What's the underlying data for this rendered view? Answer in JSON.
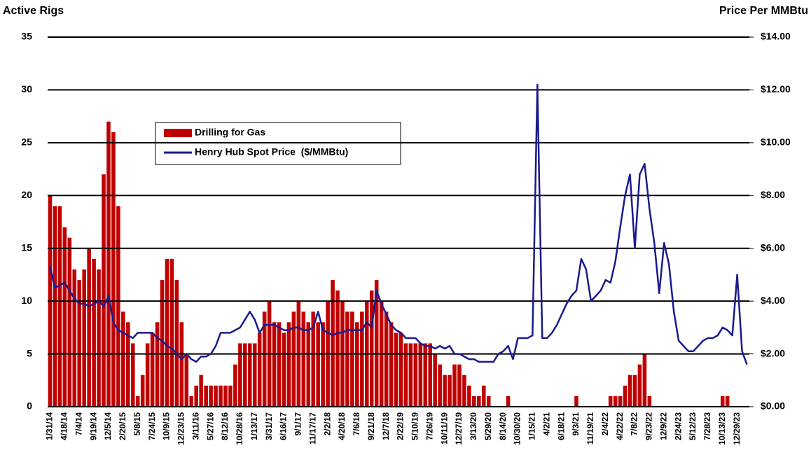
{
  "chart_data": {
    "type": "bar-line",
    "y_label": "Active Rigs",
    "y2_label": "Price Per MMBtu",
    "categories": [
      "1/31/14",
      null,
      null,
      "4/18/14",
      null,
      null,
      "7/4/14",
      null,
      null,
      "9/19/14",
      null,
      null,
      "12/5/14",
      null,
      null,
      "2/20/15",
      null,
      null,
      "5/8/15",
      null,
      null,
      "7/24/15",
      null,
      null,
      "10/9/15",
      null,
      null,
      "12/23/15",
      null,
      null,
      "3/11/16",
      null,
      null,
      "5/27/16",
      null,
      null,
      "8/12/16",
      null,
      null,
      "10/28/16",
      null,
      null,
      "1/13/17",
      null,
      null,
      "3/31/17",
      null,
      null,
      "6/16/17",
      null,
      null,
      "9/1/17",
      null,
      null,
      "11/17/17",
      null,
      null,
      "2/2/18",
      null,
      null,
      "4/20/18",
      null,
      null,
      "7/6/18",
      null,
      null,
      "9/21/18",
      null,
      null,
      "12/7/18",
      null,
      null,
      "2/22/19",
      null,
      null,
      "5/10/19",
      null,
      null,
      "7/26/19",
      null,
      null,
      "10/11/19",
      null,
      null,
      "12/27/19",
      null,
      null,
      "3/13/20",
      null,
      null,
      "5/29/20",
      null,
      null,
      "8/14/20",
      null,
      null,
      "10/30/20",
      null,
      null,
      "1/15/21",
      null,
      null,
      "4/2/21",
      null,
      null,
      "6/18/21",
      null,
      null,
      "9/3/21",
      null,
      null,
      "11/19/21",
      null,
      null,
      "2/4/22",
      null,
      null,
      "4/22/22",
      null,
      null,
      "7/8/22",
      null,
      null,
      "9/23/22",
      null,
      null,
      "12/9/22",
      null,
      null,
      "2/24/23",
      null,
      null,
      "5/12/23",
      null,
      null,
      "7/28/23",
      null,
      null,
      "10/13/23",
      null,
      null,
      "12/29/23",
      null,
      null
    ],
    "series": [
      {
        "name": "Drilling for Gas",
        "color": "#c00000",
        "kind": "bar",
        "values": [
          20,
          19,
          19,
          17,
          16,
          13,
          12,
          13,
          15,
          14,
          13,
          22,
          27,
          26,
          19,
          9,
          8,
          6,
          1,
          3,
          6,
          7,
          8,
          12,
          14,
          14,
          12,
          8,
          5,
          1,
          2,
          3,
          2,
          2,
          2,
          2,
          2,
          2,
          4,
          6,
          6,
          6,
          6,
          7,
          9,
          10,
          8,
          8,
          7,
          8,
          9,
          10,
          9,
          8,
          9,
          8,
          8,
          10,
          12,
          11,
          10,
          9,
          9,
          8,
          9,
          10,
          11,
          12,
          10,
          9,
          8,
          7,
          7,
          6,
          6,
          6,
          6,
          6,
          6,
          5,
          4,
          3,
          3,
          4,
          4,
          3,
          2,
          1,
          1,
          2,
          1,
          0,
          0,
          0,
          1,
          0,
          0,
          0,
          0,
          0,
          0,
          0,
          0,
          0,
          0,
          0,
          0,
          0,
          1,
          0,
          0,
          0,
          0,
          0,
          0,
          1,
          1,
          1,
          2,
          3,
          3,
          4,
          5,
          1,
          0,
          0,
          0,
          0,
          0,
          0,
          0,
          0,
          0,
          0,
          0,
          0,
          0,
          0,
          1,
          1,
          0,
          0,
          0,
          0
        ]
      },
      {
        "name": "Henry Hub Spot Price  ($/MMBtu)",
        "color": "#1a1a8c",
        "kind": "line",
        "axis": "y2",
        "values": [
          5.3,
          4.5,
          4.6,
          4.7,
          4.4,
          4.1,
          3.9,
          3.9,
          3.8,
          3.9,
          4.0,
          3.8,
          4.2,
          3.2,
          2.9,
          2.8,
          2.7,
          2.6,
          2.8,
          2.8,
          2.8,
          2.8,
          2.6,
          2.5,
          2.3,
          2.2,
          2.0,
          1.8,
          2.0,
          1.8,
          1.7,
          1.9,
          1.9,
          2.0,
          2.3,
          2.8,
          2.8,
          2.8,
          2.9,
          3.0,
          3.3,
          3.6,
          3.3,
          2.8,
          3.1,
          3.1,
          3.1,
          3.0,
          2.9,
          2.9,
          3.0,
          3.0,
          2.9,
          2.9,
          3.0,
          3.6,
          2.9,
          2.8,
          2.7,
          2.8,
          2.8,
          2.9,
          2.9,
          2.9,
          2.9,
          3.2,
          3.0,
          4.4,
          3.9,
          3.5,
          3.1,
          2.9,
          2.8,
          2.6,
          2.6,
          2.6,
          2.4,
          2.3,
          2.3,
          2.2,
          2.3,
          2.2,
          2.3,
          2.0,
          2.0,
          1.9,
          1.8,
          1.8,
          1.7,
          1.7,
          1.7,
          1.7,
          2.0,
          2.1,
          2.3,
          1.8,
          2.6,
          2.6,
          2.6,
          2.7,
          12.2,
          2.6,
          2.6,
          2.8,
          3.1,
          3.5,
          3.9,
          4.2,
          4.4,
          5.6,
          5.2,
          4.0,
          4.2,
          4.4,
          4.8,
          4.7,
          5.5,
          6.8,
          8.0,
          8.8,
          6.0,
          8.8,
          9.2,
          7.5,
          6.2,
          4.3,
          6.2,
          5.4,
          3.6,
          2.5,
          2.3,
          2.1,
          2.1,
          2.3,
          2.5,
          2.6,
          2.6,
          2.7,
          3.0,
          2.9,
          2.7,
          5.0,
          2.1,
          1.6
        ]
      }
    ],
    "ylim": [
      0,
      35
    ],
    "yticks": [
      0,
      5,
      10,
      15,
      20,
      25,
      30,
      35
    ],
    "y2lim": [
      0,
      14
    ],
    "y2ticks": [
      {
        "value": 0,
        "label": "$0.00"
      },
      {
        "value": 2,
        "label": "$2.00"
      },
      {
        "value": 4,
        "label": "$4.00"
      },
      {
        "value": 6,
        "label": "$6.00"
      },
      {
        "value": 8,
        "label": "$8.00"
      },
      {
        "value": 10,
        "label": "$10.00"
      },
      {
        "value": 12,
        "label": "$12.00"
      },
      {
        "value": 14,
        "label": "$14.00"
      }
    ],
    "grid": true
  }
}
